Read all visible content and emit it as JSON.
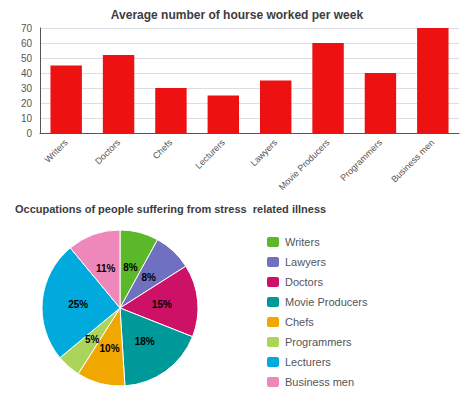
{
  "chart_data": [
    {
      "type": "bar",
      "title": "Average number of hourse worked per week",
      "categories": [
        "Writers",
        "Doctors",
        "Chefs",
        "Lecturers",
        "Lawyers",
        "Movie Producers",
        "Programmers",
        "Business men"
      ],
      "values": [
        45,
        52,
        30,
        25,
        35,
        60,
        40,
        70
      ],
      "color": "#ee1111",
      "ylim": [
        0,
        70
      ],
      "yticks": [
        0,
        10,
        20,
        30,
        40,
        50,
        60,
        70
      ],
      "grid": true
    },
    {
      "type": "pie",
      "title": "Occupations of people suffering from stress  related illness",
      "categories": [
        "Writers",
        "Lawyers",
        "Doctors",
        "Movie Producers",
        "Chefs",
        "Programmers",
        "Lecturers",
        "Business men"
      ],
      "values": [
        8,
        8,
        15,
        18,
        10,
        5,
        25,
        11
      ],
      "value_labels": [
        "8%",
        "8%",
        "15%",
        "18%",
        "10%",
        "5%",
        "25%",
        "11%"
      ],
      "colors": [
        "#5bb829",
        "#7070c0",
        "#cc1166",
        "#009999",
        "#f0a800",
        "#aad45a",
        "#00aadd",
        "#ee88bb"
      ],
      "data_labels": true,
      "legend": "right"
    }
  ]
}
